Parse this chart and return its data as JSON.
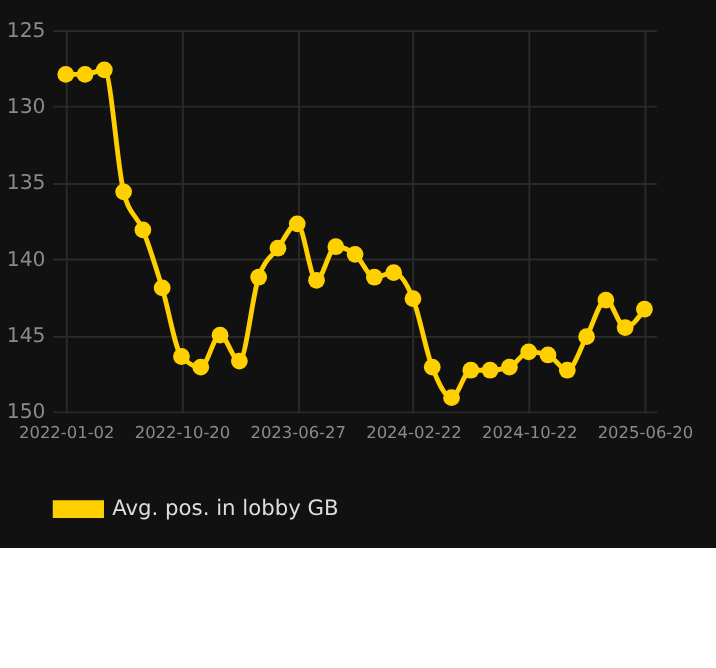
{
  "chart_data": {
    "type": "line",
    "categories": [
      "2022-01-02",
      null,
      null,
      null,
      null,
      null,
      "2022-10-20",
      null,
      null,
      null,
      null,
      null,
      "2023-06-27",
      null,
      null,
      null,
      null,
      null,
      "2024-02-22",
      null,
      null,
      null,
      null,
      null,
      "2024-10-22",
      null,
      null,
      null,
      null,
      null,
      "2025-06-20"
    ],
    "series": [
      {
        "name": "Avg. pos. in lobby GB",
        "color": "#ffd000",
        "values": [
          127.9,
          127.9,
          127.6,
          135.6,
          138.1,
          141.9,
          146.4,
          147.1,
          145.0,
          146.7,
          141.2,
          139.3,
          137.7,
          141.4,
          139.2,
          139.7,
          141.2,
          140.9,
          142.6,
          147.1,
          149.1,
          147.3,
          147.3,
          147.1,
          146.1,
          146.3,
          147.3,
          145.1,
          142.7,
          144.5,
          143.3
        ]
      }
    ],
    "ylim": [
      150,
      125
    ],
    "yticks": [
      125,
      130,
      135,
      140,
      145,
      150
    ],
    "grid": true,
    "legend": "bottom",
    "marker": "circle",
    "line_style": "solid"
  }
}
